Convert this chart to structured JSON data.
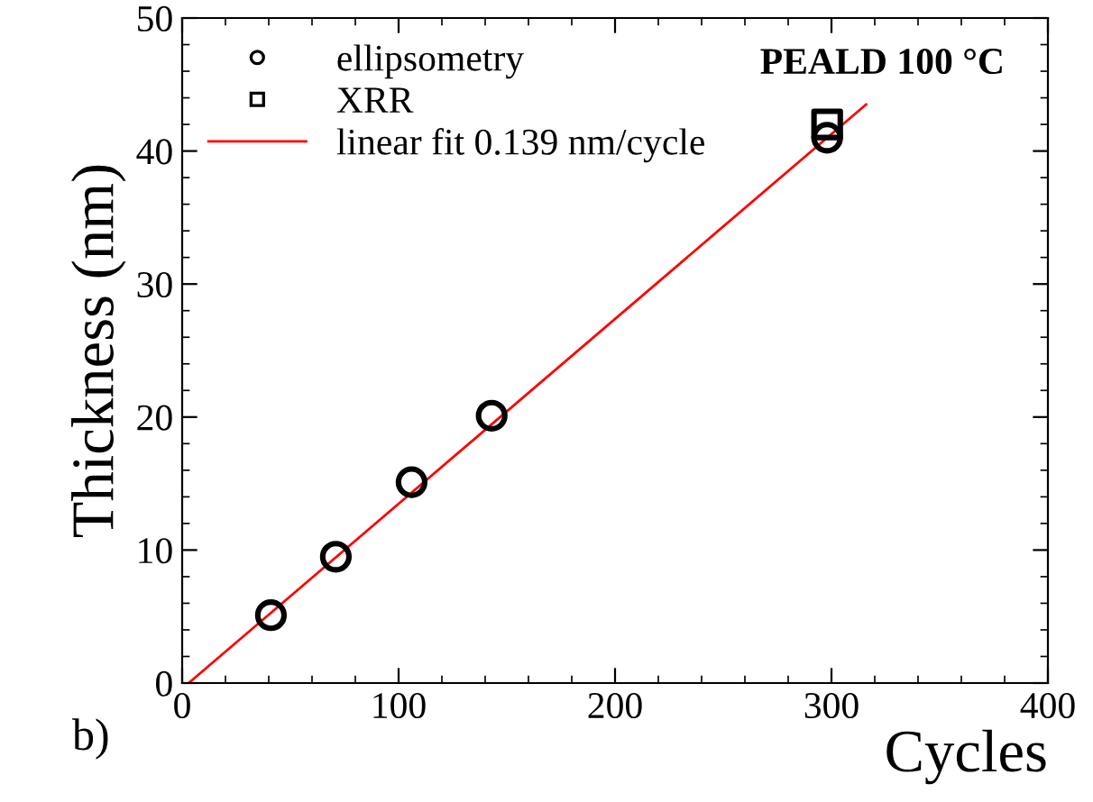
{
  "chart_data": {
    "type": "scatter",
    "xlabel": "Cycles",
    "ylabel": "Thickness (nm)",
    "xlim": [
      0,
      400
    ],
    "ylim": [
      0,
      50
    ],
    "xticks": [
      0,
      100,
      200,
      300,
      400
    ],
    "yticks": [
      0,
      10,
      20,
      30,
      40,
      50
    ],
    "series": [
      {
        "name": "ellipsometry",
        "marker": "circle",
        "color": "#000000",
        "x": [
          41,
          71,
          106,
          143,
          298
        ],
        "values": [
          5.1,
          9.5,
          15.1,
          20.1,
          41
        ]
      },
      {
        "name": "XRR",
        "marker": "square",
        "color": "#000000",
        "x": [
          298
        ],
        "values": [
          42
        ]
      },
      {
        "name": "linear fit 0.139 nm/cycle",
        "type": "line",
        "marker": "none",
        "line_style": "solid",
        "color": "#ff0000",
        "x": [
          3,
          316
        ],
        "values": [
          0,
          43.5
        ]
      }
    ],
    "annotations": [
      "PEALD 100 °C",
      "b)"
    ],
    "legend": "top left",
    "grid": false
  }
}
